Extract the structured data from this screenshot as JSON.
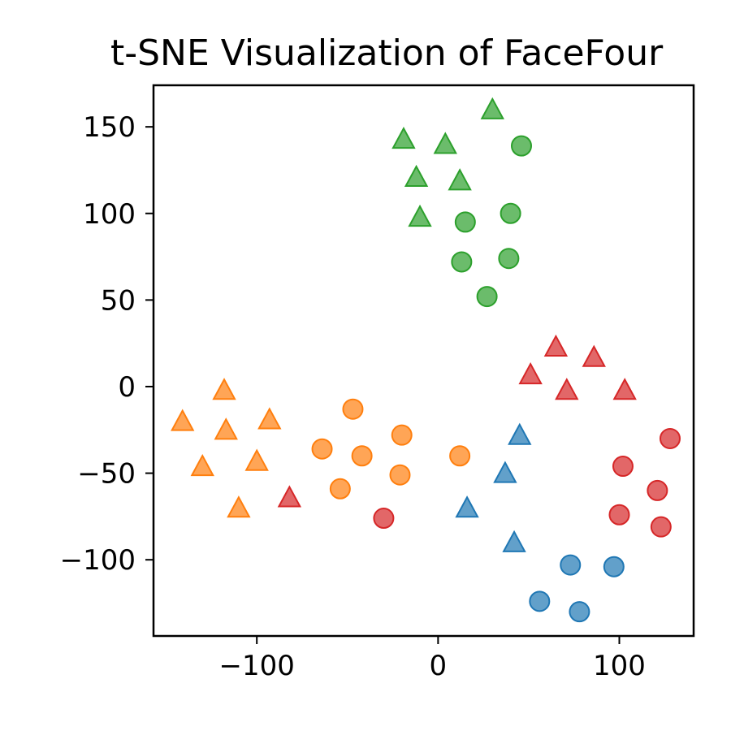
{
  "chart_data": {
    "type": "scatter",
    "title": "t-SNE Visualization of FaceFour",
    "xlabel": "",
    "ylabel": "",
    "xlim": [
      -157,
      141
    ],
    "ylim": [
      -144,
      174
    ],
    "grid": false,
    "x_ticks": [
      -100,
      0,
      100
    ],
    "y_ticks": [
      -100,
      -50,
      0,
      50,
      100,
      150
    ],
    "x_tick_labels": [
      "−100",
      "0",
      "100"
    ],
    "y_tick_labels": [
      "−100",
      "−50",
      "0",
      "50",
      "100",
      "150"
    ],
    "series": [
      {
        "color": "#1f77b4",
        "marker": "circle",
        "points": [
          [
            56,
            -124
          ],
          [
            73,
            -103
          ],
          [
            78,
            -130
          ],
          [
            97,
            -104
          ]
        ]
      },
      {
        "color": "#1f77b4",
        "marker": "triangle",
        "points": [
          [
            45,
            -28
          ],
          [
            37,
            -50
          ],
          [
            16,
            -70
          ],
          [
            42,
            -90
          ]
        ]
      },
      {
        "color": "#ff7f0e",
        "marker": "circle",
        "points": [
          [
            -47,
            -13
          ],
          [
            -20,
            -28
          ],
          [
            -64,
            -36
          ],
          [
            -42,
            -40
          ],
          [
            12,
            -40
          ],
          [
            -54,
            -59
          ],
          [
            -21,
            -51
          ]
        ]
      },
      {
        "color": "#ff7f0e",
        "marker": "triangle",
        "points": [
          [
            -118,
            -2
          ],
          [
            -141,
            -20
          ],
          [
            -117,
            -25
          ],
          [
            -93,
            -19
          ],
          [
            -130,
            -46
          ],
          [
            -100,
            -43
          ],
          [
            -110,
            -70
          ]
        ]
      },
      {
        "color": "#2ca02c",
        "marker": "circle",
        "points": [
          [
            46,
            139
          ],
          [
            40,
            100
          ],
          [
            15,
            95
          ],
          [
            13,
            72
          ],
          [
            39,
            74
          ],
          [
            27,
            52
          ]
        ]
      },
      {
        "color": "#2ca02c",
        "marker": "triangle",
        "points": [
          [
            30,
            160
          ],
          [
            -19,
            143
          ],
          [
            4,
            140
          ],
          [
            -12,
            121
          ],
          [
            12,
            119
          ],
          [
            -10,
            98
          ]
        ]
      },
      {
        "color": "#d62728",
        "marker": "circle",
        "points": [
          [
            128,
            -30
          ],
          [
            102,
            -46
          ],
          [
            121,
            -60
          ],
          [
            100,
            -74
          ],
          [
            123,
            -81
          ],
          [
            -30,
            -76
          ]
        ]
      },
      {
        "color": "#d62728",
        "marker": "triangle",
        "points": [
          [
            65,
            23
          ],
          [
            86,
            17
          ],
          [
            51,
            7
          ],
          [
            71,
            -2
          ],
          [
            103,
            -2
          ],
          [
            -82,
            -64
          ]
        ]
      }
    ]
  }
}
